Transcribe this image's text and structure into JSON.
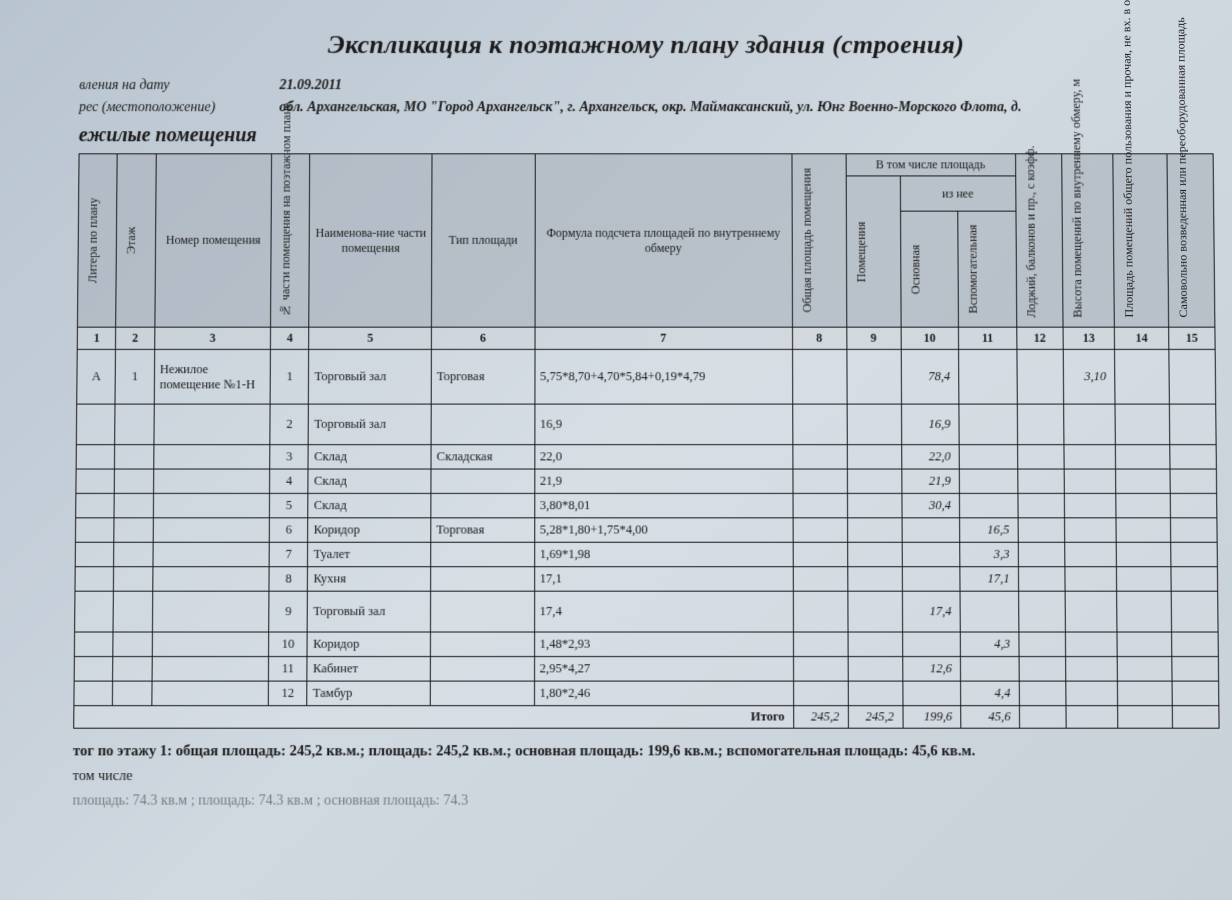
{
  "title": "Экспликация к поэтажному плану здания (строения)",
  "meta": {
    "date_label": "вления на дату",
    "date_value": "21.09.2011",
    "addr_label": "рес (местоположение)",
    "addr_value": "обл. Архангельская, МО \"Город Архангельск\", г. Архангельск, окр. Маймаксанский, ул. Юнг Военно-Морского Флота, д."
  },
  "section": "ежилые помещения",
  "headers": {
    "litera": "Литера по плану",
    "etazh": "Этаж",
    "nomer": "Номер помещения",
    "chast": "№ части помещения на поэтажном плане",
    "naimen": "Наименова-ние части помещения",
    "tip": "Тип площади",
    "formula": "Формула подсчета площадей по внутреннему обмеру",
    "obsh": "Общая площадь помещения",
    "vtom": "В том числе площадь",
    "iznee": "из нее",
    "pomesh": "Помещения",
    "osnov": "Основная",
    "vspom": "Вспомогательная",
    "lodj": "Лоджий, балконов и пр., с коэфф.",
    "vysota": "Высота помещений по внутреннему обмеру, м",
    "plosh": "Площадь помещений общего пользования и прочая, не вх. в общую площадь",
    "samo": "Самовольно возведенная или переоборудованная площадь"
  },
  "colnums": [
    "1",
    "2",
    "3",
    "4",
    "5",
    "6",
    "7",
    "8",
    "9",
    "10",
    "11",
    "12",
    "13",
    "14",
    "15"
  ],
  "rows": [
    {
      "lit": "А",
      "et": "1",
      "nom": "Нежилое помещение №1-Н",
      "ch": "1",
      "nm": "Торговый зал",
      "tip": "Торговая",
      "form": "5,75*8,70+4,70*5,84+0,19*4,79",
      "c10": "78,4",
      "c13": "3,10",
      "tall": true
    },
    {
      "ch": "2",
      "nm": "Торговый зал",
      "form": "16,9",
      "c10": "16,9",
      "med": true
    },
    {
      "ch": "3",
      "nm": "Склад",
      "tip": "Складская",
      "form": "22,0",
      "c10": "22,0"
    },
    {
      "ch": "4",
      "nm": "Склад",
      "form": "21,9",
      "c10": "21,9"
    },
    {
      "ch": "5",
      "nm": "Склад",
      "form": "3,80*8,01",
      "c10": "30,4"
    },
    {
      "ch": "6",
      "nm": "Коридор",
      "tip": "Торговая",
      "form": "5,28*1,80+1,75*4,00",
      "c11": "16,5"
    },
    {
      "ch": "7",
      "nm": "Туалет",
      "form": "1,69*1,98",
      "c11": "3,3"
    },
    {
      "ch": "8",
      "nm": "Кухня",
      "form": "17,1",
      "c11": "17,1"
    },
    {
      "ch": "9",
      "nm": "Торговый зал",
      "form": "17,4",
      "c10": "17,4",
      "med": true
    },
    {
      "ch": "10",
      "nm": "Коридор",
      "form": "1,48*2,93",
      "c11": "4,3"
    },
    {
      "ch": "11",
      "nm": "Кабинет",
      "form": "2,95*4,27",
      "c10": "12,6"
    },
    {
      "ch": "12",
      "nm": "Тамбур",
      "form": "1,80*2,46",
      "c11": "4,4"
    }
  ],
  "totals": {
    "label": "Итого",
    "c8": "245,2",
    "c9": "245,2",
    "c10": "199,6",
    "c11": "45,6"
  },
  "footer1": "тог по этажу 1: общая площадь: 245,2 кв.м.; площадь: 245,2 кв.м.; основная площадь: 199,6 кв.м.; вспомогательная площадь: 45,6 кв.м.",
  "footer2": "том числе",
  "footer3": "площадь: 74.3 кв.м ; площадь: 74.3 кв.м ; основная площадь: 74.3"
}
